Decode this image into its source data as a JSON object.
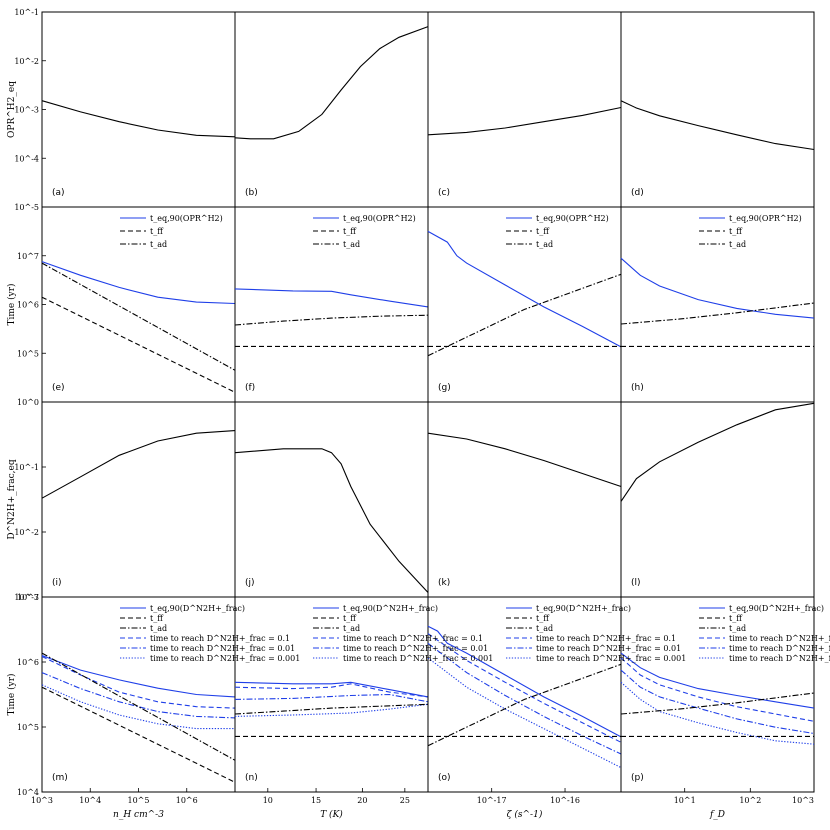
{
  "colors": {
    "blue": "#1f3fe8",
    "black": "#000000"
  },
  "ylabels": [
    "OPR^H2_eq",
    "Time (yr)",
    "D^N2H+_frac,eq",
    "Time (yr)"
  ],
  "xlabels": [
    "n_H cm^-3",
    "T (K)",
    "ζ (s^-1)",
    "f_D"
  ],
  "row_ticks": [
    [
      "10^-5",
      "10^-4",
      "10^-3",
      "10^-2",
      "10^-1"
    ],
    [
      "10^5",
      "10^6",
      "10^7"
    ],
    [
      "10^-3",
      "10^-2",
      "10^-1",
      "10^0"
    ],
    [
      "10^4",
      "10^5",
      "10^6",
      "10^7"
    ]
  ],
  "col_ticks": [
    [
      "10^3",
      "10^4",
      "10^5",
      "10^6"
    ],
    [
      "10",
      "15",
      "20",
      "25"
    ],
    [
      "10^-17",
      "10^-16"
    ],
    [
      "10^1",
      "10^2",
      "10^3"
    ]
  ],
  "legends": {
    "row2": [
      {
        "label": "t_eq,90(OPR^H2)",
        "style": "solid-blue"
      },
      {
        "label": "t_ff",
        "style": "dashed"
      },
      {
        "label": "t_ad",
        "style": "dashdot"
      }
    ],
    "row4": [
      {
        "label": "t_eq,90(D^N2H+_frac)",
        "style": "solid-blue"
      },
      {
        "label": "t_ff",
        "style": "dashed"
      },
      {
        "label": "t_ad",
        "style": "dashdot"
      },
      {
        "label": "time to reach D^N2H+_frac = 0.1",
        "style": "dashed-blue"
      },
      {
        "label": "time to reach D^N2H+_frac = 0.01",
        "style": "dashdot-blue"
      },
      {
        "label": "time to reach D^N2H+_frac = 0.001",
        "style": "dotted-blue"
      }
    ]
  },
  "chart_data": [
    {
      "type": "line",
      "panel": "a",
      "ylim": [
        -5,
        -1
      ],
      "series": [
        {
          "style": "solid",
          "x": [
            0,
            0.2,
            0.4,
            0.6,
            0.8,
            1
          ],
          "y": [
            -2.82,
            -3.05,
            -3.25,
            -3.42,
            -3.53,
            -3.56
          ]
        }
      ]
    },
    {
      "type": "line",
      "panel": "b",
      "ylim": [
        -5,
        -1
      ],
      "series": [
        {
          "style": "solid",
          "x": [
            0,
            0.08,
            0.2,
            0.33,
            0.45,
            0.55,
            0.65,
            0.75,
            0.85,
            1
          ],
          "y": [
            -3.58,
            -3.6,
            -3.6,
            -3.45,
            -3.1,
            -2.6,
            -2.12,
            -1.75,
            -1.52,
            -1.3
          ]
        }
      ]
    },
    {
      "type": "line",
      "panel": "c",
      "ylim": [
        -5,
        -1
      ],
      "series": [
        {
          "style": "solid",
          "x": [
            0,
            0.2,
            0.4,
            0.6,
            0.8,
            1
          ],
          "y": [
            -3.52,
            -3.47,
            -3.38,
            -3.25,
            -3.12,
            -2.96
          ]
        }
      ]
    },
    {
      "type": "line",
      "panel": "d",
      "ylim": [
        -5,
        -1
      ],
      "series": [
        {
          "style": "solid",
          "x": [
            0,
            0.08,
            0.2,
            0.4,
            0.6,
            0.8,
            1
          ],
          "y": [
            -2.82,
            -2.97,
            -3.13,
            -3.33,
            -3.52,
            -3.7,
            -3.82
          ]
        }
      ]
    },
    {
      "type": "line",
      "panel": "e",
      "ylim": [
        4,
        8
      ],
      "series": [
        {
          "style": "solid-blue",
          "x": [
            0,
            0.2,
            0.4,
            0.6,
            0.8,
            1
          ],
          "y": [
            6.88,
            6.6,
            6.35,
            6.15,
            6.05,
            6.02
          ]
        },
        {
          "style": "dashed",
          "x": [
            0,
            1
          ],
          "y": [
            6.15,
            4.2
          ]
        },
        {
          "style": "dashdot",
          "x": [
            0,
            0.5,
            1
          ],
          "y": [
            6.85,
            5.75,
            4.65
          ]
        }
      ]
    },
    {
      "type": "line",
      "panel": "f",
      "ylim": [
        4,
        8
      ],
      "series": [
        {
          "style": "solid-blue",
          "x": [
            0,
            0.3,
            0.5,
            0.6,
            0.8,
            1
          ],
          "y": [
            6.32,
            6.28,
            6.27,
            6.2,
            6.07,
            5.95
          ]
        },
        {
          "style": "dashed",
          "x": [
            0,
            1
          ],
          "y": [
            5.14,
            5.14
          ]
        },
        {
          "style": "dashdot",
          "x": [
            0,
            0.25,
            0.5,
            0.75,
            1
          ],
          "y": [
            5.58,
            5.66,
            5.72,
            5.76,
            5.78
          ]
        }
      ]
    },
    {
      "type": "line",
      "panel": "g",
      "ylim": [
        4,
        8
      ],
      "series": [
        {
          "style": "solid-blue",
          "x": [
            0,
            0.1,
            0.15,
            0.2,
            0.4,
            0.6,
            0.8,
            1
          ],
          "y": [
            7.5,
            7.28,
            7.0,
            6.85,
            6.4,
            5.95,
            5.55,
            5.13
          ]
        },
        {
          "style": "dashed",
          "x": [
            0,
            1
          ],
          "y": [
            5.14,
            5.14
          ]
        },
        {
          "style": "dashdot",
          "x": [
            0,
            0.5,
            1
          ],
          "y": [
            4.95,
            5.9,
            6.62
          ]
        }
      ]
    },
    {
      "type": "line",
      "panel": "h",
      "ylim": [
        4,
        8
      ],
      "series": [
        {
          "style": "solid-blue",
          "x": [
            0,
            0.1,
            0.2,
            0.4,
            0.6,
            0.8,
            1
          ],
          "y": [
            6.95,
            6.6,
            6.38,
            6.1,
            5.92,
            5.8,
            5.72
          ]
        },
        {
          "style": "dashed",
          "x": [
            0,
            1
          ],
          "y": [
            5.14,
            5.14
          ]
        },
        {
          "style": "dashdot",
          "x": [
            0,
            0.3,
            0.6,
            0.8,
            1
          ],
          "y": [
            5.6,
            5.7,
            5.83,
            5.93,
            6.03
          ]
        }
      ]
    },
    {
      "type": "line",
      "panel": "i",
      "ylim": [
        -3,
        0
      ],
      "series": [
        {
          "style": "solid",
          "x": [
            0,
            0.2,
            0.4,
            0.6,
            0.8,
            1
          ],
          "y": [
            -1.48,
            -1.15,
            -0.82,
            -0.6,
            -0.48,
            -0.44
          ]
        }
      ]
    },
    {
      "type": "line",
      "panel": "j",
      "ylim": [
        -3,
        0
      ],
      "series": [
        {
          "style": "solid",
          "x": [
            0,
            0.25,
            0.45,
            0.5,
            0.55,
            0.6,
            0.7,
            0.85,
            1
          ],
          "y": [
            -0.78,
            -0.72,
            -0.72,
            -0.78,
            -0.95,
            -1.3,
            -1.88,
            -2.45,
            -2.93
          ]
        }
      ]
    },
    {
      "type": "line",
      "panel": "k",
      "ylim": [
        -3,
        0
      ],
      "series": [
        {
          "style": "solid",
          "x": [
            0,
            0.2,
            0.4,
            0.6,
            0.8,
            1
          ],
          "y": [
            -0.48,
            -0.57,
            -0.72,
            -0.9,
            -1.1,
            -1.3
          ]
        }
      ]
    },
    {
      "type": "line",
      "panel": "l",
      "ylim": [
        -3,
        0
      ],
      "series": [
        {
          "style": "solid",
          "x": [
            0,
            0.08,
            0.2,
            0.4,
            0.6,
            0.8,
            1
          ],
          "y": [
            -1.53,
            -1.18,
            -0.92,
            -0.62,
            -0.35,
            -0.12,
            -0.02
          ]
        }
      ]
    },
    {
      "type": "line",
      "panel": "m",
      "ylim": [
        4,
        8
      ],
      "series": [
        {
          "style": "solid-blue",
          "x": [
            0,
            0.2,
            0.4,
            0.6,
            0.8,
            1
          ],
          "y": [
            6.8,
            6.5,
            6.3,
            6.13,
            6.0,
            5.95
          ]
        },
        {
          "style": "dashed-blue",
          "x": [
            0,
            0.2,
            0.4,
            0.6,
            0.8,
            1
          ],
          "y": [
            6.78,
            6.4,
            6.05,
            5.85,
            5.75,
            5.72
          ]
        },
        {
          "style": "dashdot-blue",
          "x": [
            0,
            0.2,
            0.4,
            0.6,
            0.8,
            1
          ],
          "y": [
            6.45,
            6.12,
            5.85,
            5.65,
            5.55,
            5.52
          ]
        },
        {
          "style": "dotted-blue",
          "x": [
            0,
            0.2,
            0.4,
            0.6,
            0.8,
            1
          ],
          "y": [
            6.2,
            5.85,
            5.58,
            5.4,
            5.3,
            5.3
          ]
        },
        {
          "style": "dashed",
          "x": [
            0,
            1
          ],
          "y": [
            6.15,
            4.2
          ]
        },
        {
          "style": "dashdot",
          "x": [
            0,
            0.5,
            1
          ],
          "y": [
            6.85,
            5.75,
            4.65
          ]
        }
      ]
    },
    {
      "type": "line",
      "panel": "n",
      "ylim": [
        4,
        8
      ],
      "series": [
        {
          "style": "solid-blue",
          "x": [
            0,
            0.3,
            0.5,
            0.6,
            0.8,
            1
          ],
          "y": [
            6.25,
            6.22,
            6.22,
            6.25,
            6.1,
            5.95
          ]
        },
        {
          "style": "dashed-blue",
          "x": [
            0,
            0.3,
            0.5,
            0.6,
            0.8,
            1
          ],
          "y": [
            6.15,
            6.12,
            6.15,
            6.22,
            6.05,
            5.95
          ]
        },
        {
          "style": "dashdot-blue",
          "x": [
            0,
            0.3,
            0.6,
            0.8,
            1
          ],
          "y": [
            5.9,
            5.92,
            5.98,
            6.0,
            5.85
          ]
        },
        {
          "style": "dotted-blue",
          "x": [
            0,
            0.3,
            0.6,
            0.8,
            1
          ],
          "y": [
            5.55,
            5.58,
            5.62,
            5.7,
            5.8
          ]
        },
        {
          "style": "dashed",
          "x": [
            0,
            1
          ],
          "y": [
            5.14,
            5.14
          ]
        },
        {
          "style": "dashdot",
          "x": [
            0,
            0.25,
            0.5,
            0.75,
            1
          ],
          "y": [
            5.6,
            5.66,
            5.72,
            5.76,
            5.8
          ]
        }
      ]
    },
    {
      "type": "line",
      "panel": "o",
      "ylim": [
        4,
        8
      ],
      "series": [
        {
          "style": "solid-blue",
          "x": [
            0,
            0.05,
            0.1,
            0.2,
            0.4,
            0.6,
            0.8,
            1
          ],
          "y": [
            7.4,
            7.3,
            7.05,
            6.85,
            6.4,
            5.95,
            5.55,
            5.13
          ]
        },
        {
          "style": "dashed-blue",
          "x": [
            0,
            0.2,
            0.4,
            0.6,
            0.8,
            1
          ],
          "y": [
            7.25,
            6.7,
            6.25,
            5.82,
            5.42,
            5.02
          ]
        },
        {
          "style": "dashdot-blue",
          "x": [
            0,
            0.2,
            0.4,
            0.6,
            0.8,
            1
          ],
          "y": [
            7.05,
            6.45,
            5.98,
            5.55,
            5.15,
            4.78
          ]
        },
        {
          "style": "dotted-blue",
          "x": [
            0,
            0.2,
            0.4,
            0.6,
            0.8,
            1
          ],
          "y": [
            6.75,
            6.15,
            5.7,
            5.3,
            4.9,
            4.5
          ]
        },
        {
          "style": "dashed",
          "x": [
            0,
            1
          ],
          "y": [
            5.14,
            5.14
          ]
        },
        {
          "style": "dashdot",
          "x": [
            0,
            0.5,
            1
          ],
          "y": [
            4.95,
            5.9,
            6.62
          ]
        }
      ]
    },
    {
      "type": "line",
      "panel": "p",
      "ylim": [
        4,
        8
      ],
      "series": [
        {
          "style": "solid-blue",
          "x": [
            0,
            0.1,
            0.2,
            0.4,
            0.6,
            0.8,
            1
          ],
          "y": [
            6.85,
            6.55,
            6.35,
            6.12,
            5.98,
            5.85,
            5.72
          ]
        },
        {
          "style": "dashed-blue",
          "x": [
            0,
            0.1,
            0.2,
            0.4,
            0.6,
            0.8,
            1
          ],
          "y": [
            6.75,
            6.4,
            6.2,
            5.95,
            5.75,
            5.6,
            5.45
          ]
        },
        {
          "style": "dashdot-blue",
          "x": [
            0,
            0.1,
            0.2,
            0.4,
            0.6,
            0.8,
            1
          ],
          "y": [
            6.5,
            6.15,
            5.95,
            5.72,
            5.5,
            5.33,
            5.2
          ]
        },
        {
          "style": "dotted-blue",
          "x": [
            0,
            0.1,
            0.2,
            0.4,
            0.6,
            0.8,
            1
          ],
          "y": [
            6.25,
            5.9,
            5.65,
            5.42,
            5.22,
            5.05,
            4.98
          ]
        },
        {
          "style": "dashed",
          "x": [
            0,
            1
          ],
          "y": [
            5.14,
            5.14
          ]
        },
        {
          "style": "dashdot",
          "x": [
            0,
            0.3,
            0.6,
            0.8,
            1
          ],
          "y": [
            5.6,
            5.7,
            5.83,
            5.93,
            6.03
          ]
        }
      ]
    }
  ]
}
